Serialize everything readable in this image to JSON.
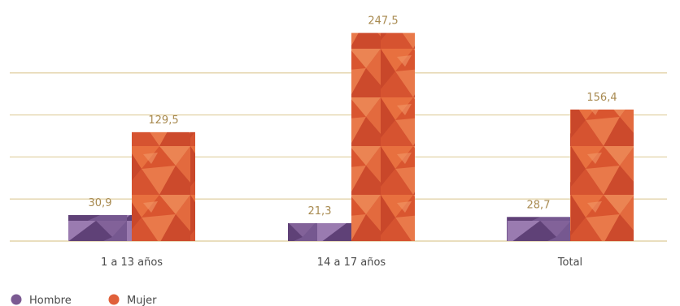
{
  "chart_data": {
    "type": "bar",
    "categories": [
      "1 a 13 años",
      "14 a 17 años",
      "Total"
    ],
    "series": [
      {
        "name": "Hombre",
        "values": [
          30.9,
          21.3,
          28.7
        ],
        "labels": [
          "30,9",
          "21,3",
          "28,7"
        ]
      },
      {
        "name": "Mujer",
        "values": [
          129.5,
          247.5,
          156.4
        ],
        "labels": [
          "129,5",
          "247,5",
          "156,4"
        ]
      }
    ],
    "ylim": [
      0,
      250
    ],
    "grid": true,
    "legend_position": "bottom-left",
    "colors": {
      "hombre": "#7b5a92",
      "mujer": "#e0603a",
      "grid": "#e3d3a8",
      "value_label": "#a88a50",
      "tick_label": "#4a4a4a"
    }
  }
}
